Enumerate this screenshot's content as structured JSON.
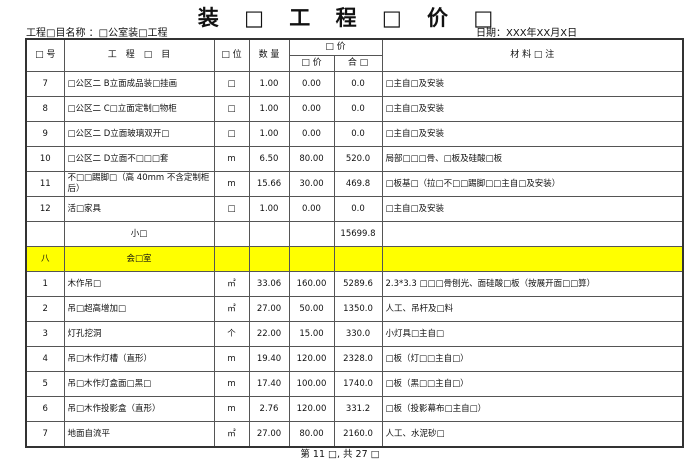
{
  "title": "装 □ 工 程 □ 价 □",
  "project_label": "工程□目名称 ：□公室装□工程",
  "date_label": "日期：XXX年XX月X日",
  "headers": {
    "no": "□ 号",
    "item": "工　程　□　目",
    "unit": "□ 位",
    "qty": "数 量",
    "price_group": "□ 价",
    "unit_price": "□ 价",
    "total": "合 □",
    "notes": "材 料 □ 注"
  },
  "rows": [
    {
      "no": "7",
      "item": "□公区二 B立面成品装□挂画",
      "unit": "□",
      "qty": "1.00",
      "price": "0.00",
      "total": "0.0",
      "notes": "□主自□及安装"
    },
    {
      "no": "8",
      "item": "□公区二 C□立面定制□物柜",
      "unit": "□",
      "qty": "1.00",
      "price": "0.00",
      "total": "0.0",
      "notes": "□主自□及安装"
    },
    {
      "no": "9",
      "item": "□公区二 D立面玻璃双开□",
      "unit": "□",
      "qty": "1.00",
      "price": "0.00",
      "total": "0.0",
      "notes": "□主自□及安装"
    },
    {
      "no": "10",
      "item": "□公区二 D立面不□□□套",
      "unit": "m",
      "qty": "6.50",
      "price": "80.00",
      "total": "520.0",
      "notes": "局部□□□骨、□板及硅酸□板"
    },
    {
      "no": "11",
      "item": "不□□踢脚□（高 40mm 不含定制柜后）",
      "unit": "m",
      "qty": "15.66",
      "price": "30.00",
      "total": "469.8",
      "notes": "□板基□（拉□不□□踢脚□□主自□及安装）"
    },
    {
      "no": "12",
      "item": "活□家具",
      "unit": "□",
      "qty": "1.00",
      "price": "0.00",
      "total": "0.0",
      "notes": "□主自□及安装"
    },
    {
      "no": "",
      "item": "小□",
      "unit": "",
      "qty": "",
      "price": "",
      "total": "15699.8",
      "notes": "",
      "subtotal": true
    },
    {
      "no": "八",
      "item": "会□室",
      "unit": "",
      "qty": "",
      "price": "",
      "total": "",
      "notes": "",
      "section": true
    },
    {
      "no": "1",
      "item": "木作吊□",
      "unit": "㎡",
      "qty": "33.06",
      "price": "160.00",
      "total": "5289.6",
      "notes": "2.3*3.3 □□□骨刨光、面硅酸□板（按展开面□□算）"
    },
    {
      "no": "2",
      "item": "吊□超高增加□",
      "unit": "㎡",
      "qty": "27.00",
      "price": "50.00",
      "total": "1350.0",
      "notes": "人工、吊杆及□料"
    },
    {
      "no": "3",
      "item": "灯孔挖洞",
      "unit": "个",
      "qty": "22.00",
      "price": "15.00",
      "total": "330.0",
      "notes": "小灯具□主自□"
    },
    {
      "no": "4",
      "item": "吊□木作灯槽（直形）",
      "unit": "m",
      "qty": "19.40",
      "price": "120.00",
      "total": "2328.0",
      "notes": "□板（灯□□主自□）"
    },
    {
      "no": "5",
      "item": "吊□木作灯盒面□黑□",
      "unit": "m",
      "qty": "17.40",
      "price": "100.00",
      "total": "1740.0",
      "notes": "□板（黑□□主自□）"
    },
    {
      "no": "6",
      "item": "吊□木作投影盒（直形）",
      "unit": "m",
      "qty": "2.76",
      "price": "120.00",
      "total": "331.2",
      "notes": "□板（投影幕布□主自□）"
    },
    {
      "no": "7",
      "item": "地面自流平",
      "unit": "㎡",
      "qty": "27.00",
      "price": "80.00",
      "total": "2160.0",
      "notes": "人工、水泥砂□"
    }
  ],
  "section_color": "#ffff00",
  "footer": "第 11 □, 共 27 □"
}
